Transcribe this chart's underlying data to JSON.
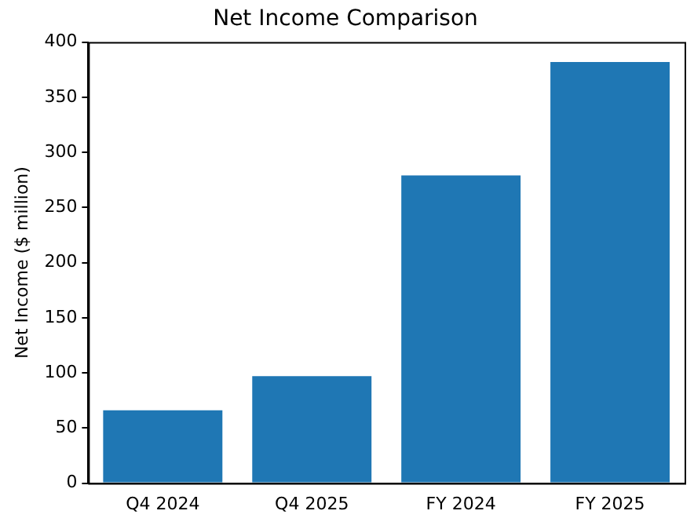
{
  "chart_data": {
    "type": "bar",
    "title": "Net Income Comparison",
    "ylabel": "Net Income ($ million)",
    "categories": [
      "Q4 2024",
      "Q4 2025",
      "FY 2024",
      "FY 2025"
    ],
    "values": [
      66,
      97,
      279,
      382
    ],
    "color": "#1f77b4",
    "ylim": [
      0,
      400
    ],
    "yticks": [
      0,
      50,
      100,
      150,
      200,
      250,
      300,
      350,
      400
    ],
    "grid": false,
    "legend": false
  }
}
